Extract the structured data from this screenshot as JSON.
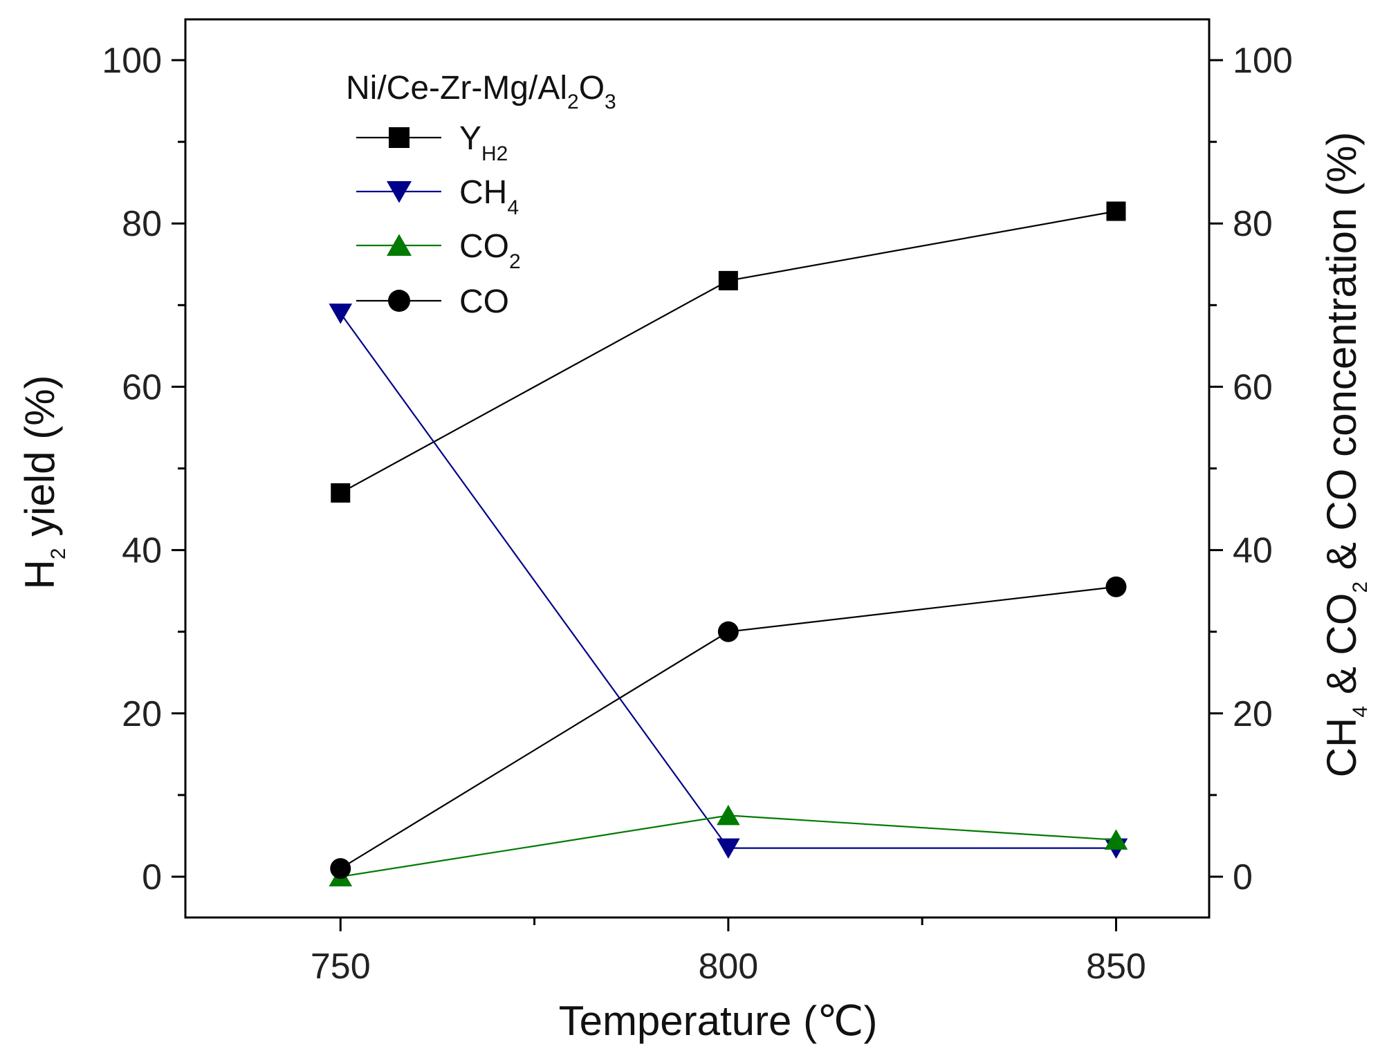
{
  "chart_data": {
    "type": "line",
    "title": "",
    "legend_title": {
      "main": "Ni/Ce-Zr-Mg/Al",
      "sub1": "2",
      "mid": "O",
      "sub2": "3"
    },
    "legend_position": "top-left",
    "xlabel": "Temperature (℃)",
    "ylabel": {
      "pre": "H",
      "sub": "2",
      "post": " yield (%)"
    },
    "y2label": {
      "parts": [
        {
          "text": "CH",
          "sub": false
        },
        {
          "text": "4",
          "sub": true
        },
        {
          "text": " & CO",
          "sub": false
        },
        {
          "text": "2",
          "sub": true
        },
        {
          "text": " & CO concentration (%)",
          "sub": false
        }
      ]
    },
    "x": [
      750,
      800,
      850
    ],
    "xlim": [
      730,
      862
    ],
    "ylim": [
      -5,
      105
    ],
    "x_ticks": [
      750,
      800,
      850
    ],
    "x_minor_ticks": [
      775,
      825
    ],
    "y_ticks": [
      0,
      20,
      40,
      60,
      80,
      100
    ],
    "y_minor_ticks": [
      10,
      30,
      50,
      70,
      90
    ],
    "grid": false,
    "series": [
      {
        "name": {
          "main": "Y",
          "sub": "H2"
        },
        "axis": "left",
        "marker": "square",
        "color": "#000000",
        "values": [
          47,
          73,
          81.5
        ]
      },
      {
        "name": {
          "main": "CH",
          "sub": "4"
        },
        "axis": "right",
        "marker": "triangle-down",
        "color": "#00008B",
        "values": [
          69,
          3.5,
          3.5
        ]
      },
      {
        "name": {
          "main": "CO",
          "sub": "2"
        },
        "axis": "right",
        "marker": "triangle-up",
        "color": "#007A00",
        "values": [
          0,
          7.5,
          4.5
        ]
      },
      {
        "name": {
          "main": "CO",
          "sub": ""
        },
        "axis": "right",
        "marker": "circle",
        "color": "#000000",
        "values": [
          1,
          30,
          35.5
        ]
      }
    ]
  }
}
